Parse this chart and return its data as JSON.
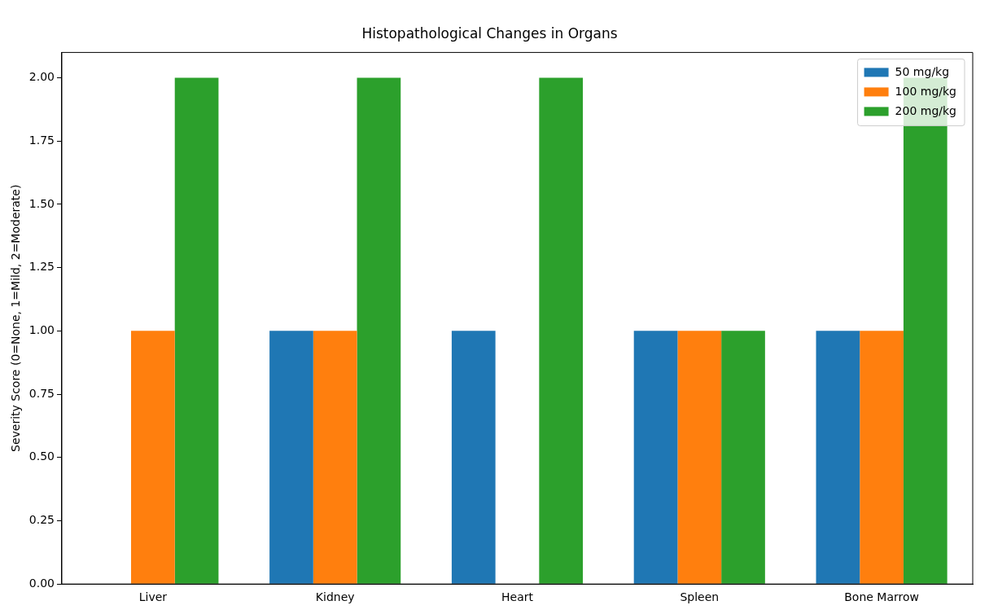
{
  "chart_data": {
    "type": "bar",
    "title": "Histopathological Changes in Organs",
    "ylabel": "Severity Score (0=None, 1=Mild, 2=Moderate)",
    "categories": [
      "Liver",
      "Kidney",
      "Heart",
      "Spleen",
      "Bone Marrow"
    ],
    "series": [
      {
        "name": "50 mg/kg",
        "color": "#1f77b4",
        "values": [
          0,
          1,
          1,
          1,
          1
        ]
      },
      {
        "name": "100 mg/kg",
        "color": "#ff7f0e",
        "values": [
          1,
          1,
          0,
          1,
          1
        ]
      },
      {
        "name": "200 mg/kg",
        "color": "#2ca02c",
        "values": [
          2,
          2,
          2,
          1,
          2
        ]
      }
    ],
    "ylim": [
      0,
      2.1
    ],
    "yticks": [
      {
        "value": 0,
        "label": "0.00"
      },
      {
        "value": 0.25,
        "label": "0.25"
      },
      {
        "value": 0.5,
        "label": "0.50"
      },
      {
        "value": 0.75,
        "label": "0.75"
      },
      {
        "value": 1,
        "label": "1.00"
      },
      {
        "value": 1.25,
        "label": "1.25"
      },
      {
        "value": 1.5,
        "label": "1.50"
      },
      {
        "value": 1.75,
        "label": "1.75"
      },
      {
        "value": 2,
        "label": "2.00"
      }
    ],
    "grid": false,
    "legend": "top right"
  }
}
